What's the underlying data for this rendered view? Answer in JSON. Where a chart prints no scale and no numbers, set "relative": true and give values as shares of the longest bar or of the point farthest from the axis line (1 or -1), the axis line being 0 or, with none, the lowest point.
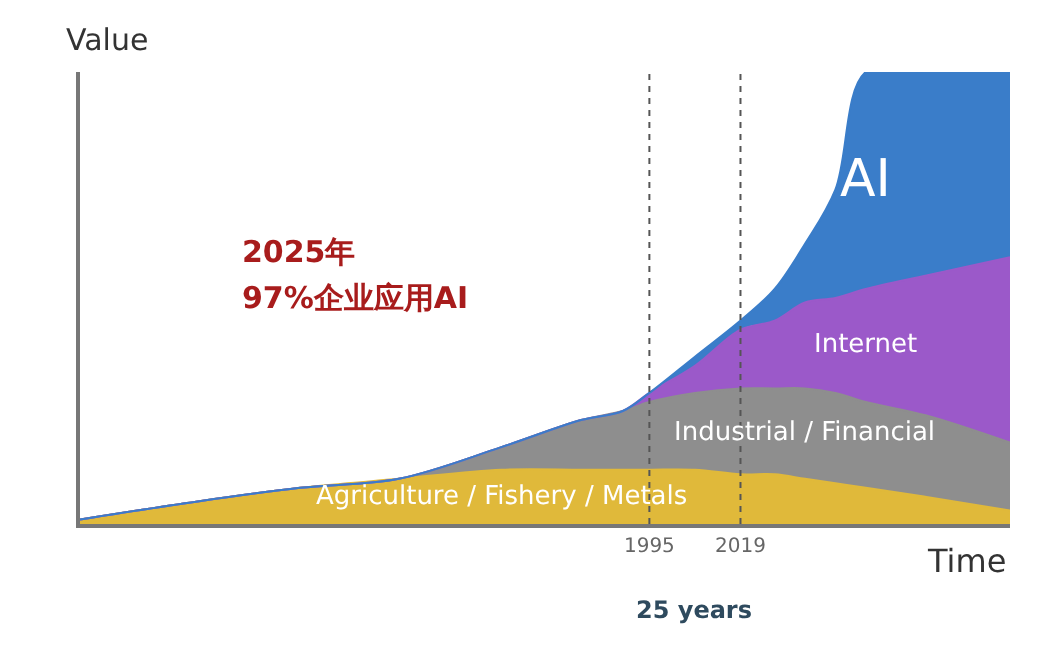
{
  "chart_data": {
    "type": "area",
    "stacked": true,
    "relative": true,
    "xlabel": "Time",
    "ylabel": "Value",
    "x": [
      1845,
      1876,
      1903,
      1929,
      1956,
      1977,
      1988,
      1995,
      2007,
      2019,
      2028,
      2036,
      2044,
      2052,
      2068,
      2090
    ],
    "xlim": [
      1845,
      2090
    ],
    "xticks": [
      1995,
      2019
    ],
    "tick_labels": "x",
    "legend": false,
    "series": [
      {
        "name": "Agriculture / Fishery / Metals",
        "color": "#e0b93a",
        "values": [
          0.01,
          0.05,
          0.08,
          0.1,
          0.12,
          0.12,
          0.12,
          0.12,
          0.12,
          0.11,
          0.11,
          0.1,
          0.09,
          0.08,
          0.06,
          0.03
        ]
      },
      {
        "name": "Industrial / Financial",
        "color": "#8e8e8e",
        "values": [
          0,
          0,
          0,
          0,
          0.05,
          0.11,
          0.13,
          0.15,
          0.17,
          0.19,
          0.19,
          0.2,
          0.2,
          0.19,
          0.18,
          0.15
        ]
      },
      {
        "name": "Internet",
        "color": "#9b59c9",
        "values": [
          0,
          0,
          0,
          0,
          0,
          0,
          0,
          0.02,
          0.06,
          0.13,
          0.15,
          0.19,
          0.21,
          0.25,
          0.31,
          0.41
        ]
      },
      {
        "name": "AI",
        "color": "#3a7dc9",
        "values": [
          0,
          0,
          0,
          0,
          0,
          0,
          0,
          0,
          0.02,
          0.02,
          0.07,
          0.13,
          0.24,
          0.48,
          0.45,
          0.41
        ]
      }
    ],
    "ref_lines": [
      {
        "axis": "x",
        "value": 1995,
        "line_style": "dotted",
        "color": "#555555"
      },
      {
        "axis": "x",
        "value": 2019,
        "line_style": "dotted",
        "color": "#555555"
      }
    ],
    "annotations": [
      "2025年",
      "97%企业应用AI",
      "25 years"
    ]
  }
}
